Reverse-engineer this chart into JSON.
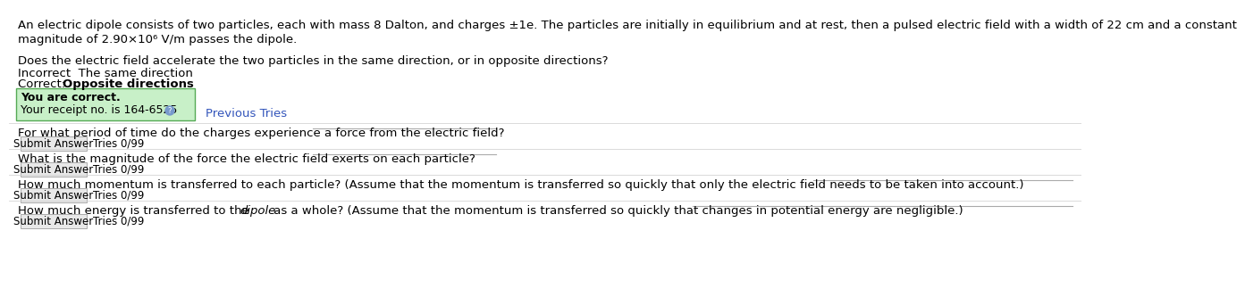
{
  "bg_color": "#ffffff",
  "text_color": "#000000",
  "paragraph1": "An electric dipole consists of two particles, each with mass 8 Dalton, and charges ±1e. The particles are initially in equilibrium and at rest, then a pulsed electric field with a width of 22 cm and a constant",
  "paragraph1b": "magnitude of 2.90×10⁶ V/m passes the dipole.",
  "question1": "Does the electric field accelerate the two particles in the same direction, or in opposite directions?",
  "incorrect_line": "Incorrect  The same direction",
  "correct_line_plain": "Correct: ",
  "correct_line_bold": "Opposite directions",
  "green_box_line1": "You are correct.",
  "green_box_line2": "Your receipt no. is 164-6525",
  "previous_tries": "Previous Tries",
  "green_bg": "#c8f0c8",
  "green_border": "#55aa55",
  "link_color": "#3355bb",
  "question2": "For what period of time do the charges experience a force from the electric field?",
  "question3": "What is the magnitude of the force the electric field exerts on each particle?",
  "question4": "How much momentum is transferred to each particle? (Assume that the momentum is transferred so quickly that only the electric field needs to be taken into account.)",
  "question5_pre": "How much energy is transferred to the ",
  "question5_italic": "dipole",
  "question5_post": " as a whole? (Assume that the momentum is transferred so quickly that changes in potential energy are negligible.)",
  "submit_label": "Submit Answer",
  "tries_label": "Tries 0/99",
  "input_line_color": "#aaaaaa",
  "button_bg": "#e8e8e8",
  "button_border": "#aaaaaa",
  "section_line_color": "#cccccc",
  "font_size_body": 9.5,
  "font_size_small": 8.5,
  "font_size_green": 9.0
}
